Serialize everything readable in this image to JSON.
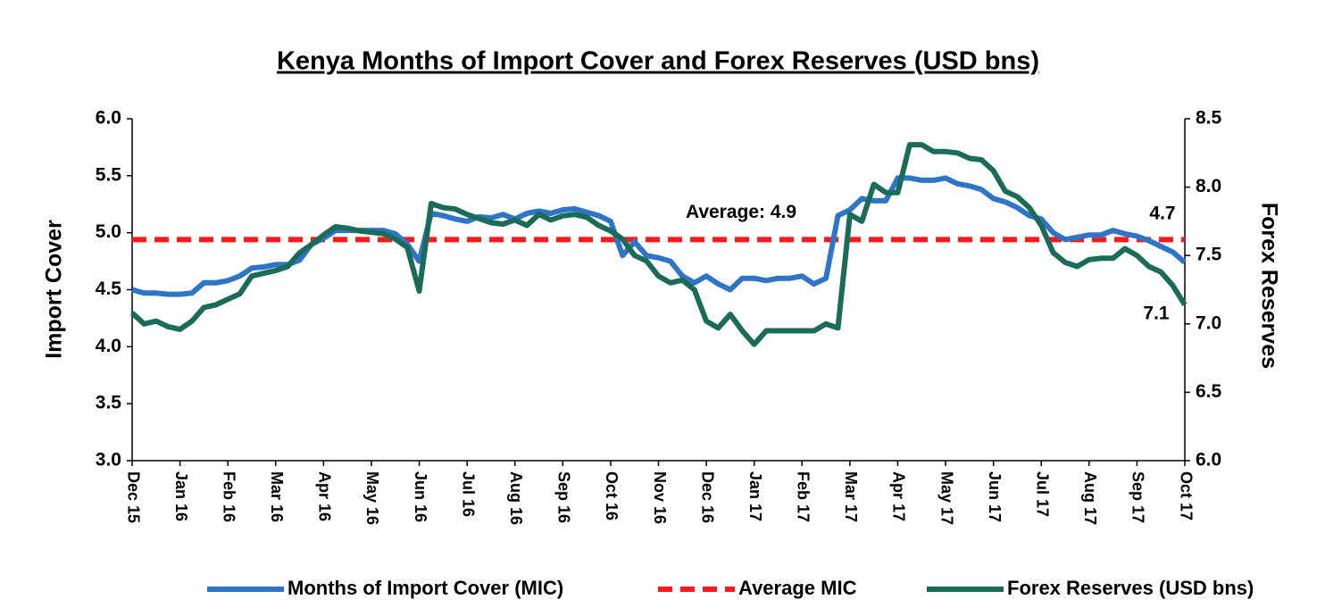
{
  "chart_data": {
    "type": "line",
    "title": "Kenya Months of Import Cover and Forex Reserves (USD bns)",
    "y_label": "Import Cover",
    "y2_label": "Forex Reserves",
    "categories": [
      "Dec 15",
      null,
      null,
      null,
      "Jan 16",
      null,
      null,
      null,
      "Feb 16",
      null,
      null,
      null,
      "Mar 16",
      null,
      null,
      null,
      "Apr 16",
      null,
      null,
      null,
      "May 16",
      null,
      null,
      null,
      "Jun 16",
      null,
      null,
      null,
      "Jul 16",
      null,
      null,
      null,
      "Aug 16",
      null,
      null,
      null,
      "Sep 16",
      null,
      null,
      null,
      "Oct 16",
      null,
      null,
      null,
      "Nov 16",
      null,
      null,
      null,
      "Dec 16",
      null,
      null,
      null,
      "Jan 17",
      null,
      null,
      null,
      "Feb 17",
      null,
      null,
      null,
      "Mar 17",
      null,
      null,
      null,
      "Apr 17",
      null,
      null,
      null,
      "May 17",
      null,
      null,
      null,
      "Jun 17",
      null,
      null,
      null,
      "Jul 17",
      null,
      null,
      null,
      "Aug 17",
      null,
      null,
      null,
      "Sep 17",
      null,
      null,
      null,
      "Oct 17"
    ],
    "series": [
      {
        "name": "Months of Import Cover (MIC)",
        "color": "#2e75c8",
        "axis": "y",
        "values": [
          4.5,
          4.47,
          4.47,
          4.46,
          4.46,
          4.47,
          4.56,
          4.56,
          4.58,
          4.62,
          4.69,
          4.7,
          4.72,
          4.72,
          4.76,
          4.9,
          4.95,
          5.02,
          5.02,
          5.02,
          5.02,
          5.02,
          4.99,
          4.9,
          4.75,
          5.17,
          5.15,
          5.12,
          5.1,
          5.14,
          5.13,
          5.16,
          5.12,
          5.17,
          5.19,
          5.17,
          5.2,
          5.21,
          5.18,
          5.15,
          5.1,
          4.8,
          4.92,
          4.8,
          4.78,
          4.75,
          4.62,
          4.56,
          4.62,
          4.55,
          4.5,
          4.6,
          4.6,
          4.58,
          4.6,
          4.6,
          4.62,
          4.55,
          4.6,
          5.15,
          5.2,
          5.3,
          5.28,
          5.28,
          5.48,
          5.48,
          5.46,
          5.46,
          5.48,
          5.43,
          5.41,
          5.38,
          5.3,
          5.27,
          5.22,
          5.15,
          5.12,
          5.0,
          4.94,
          4.96,
          4.98,
          4.98,
          5.02,
          4.99,
          4.97,
          4.93,
          4.88,
          4.83,
          4.74
        ]
      },
      {
        "name": "Forex Reserves (USD bns)",
        "color": "#1a6b58",
        "axis": "y2",
        "values": [
          7.08,
          7.0,
          7.02,
          6.98,
          6.96,
          7.02,
          7.12,
          7.14,
          7.18,
          7.22,
          7.35,
          7.37,
          7.39,
          7.42,
          7.52,
          7.58,
          7.65,
          7.71,
          7.7,
          7.68,
          7.67,
          7.66,
          7.62,
          7.56,
          7.24,
          7.88,
          7.85,
          7.84,
          7.8,
          7.77,
          7.74,
          7.73,
          7.76,
          7.72,
          7.8,
          7.76,
          7.79,
          7.8,
          7.78,
          7.72,
          7.68,
          7.62,
          7.5,
          7.46,
          7.35,
          7.3,
          7.32,
          7.25,
          7.02,
          6.97,
          7.07,
          6.95,
          6.85,
          6.95,
          6.95,
          6.95,
          6.95,
          6.95,
          7.0,
          6.97,
          7.8,
          7.75,
          8.02,
          7.96,
          7.96,
          8.31,
          8.31,
          8.26,
          8.26,
          8.25,
          8.21,
          8.2,
          8.12,
          7.97,
          7.93,
          7.85,
          7.72,
          7.52,
          7.45,
          7.42,
          7.47,
          7.48,
          7.48,
          7.55,
          7.5,
          7.42,
          7.38,
          7.28,
          7.14
        ]
      }
    ],
    "reference_line": {
      "name": "Average MIC",
      "value": 4.94,
      "label": "Average: 4.9",
      "color": "#ff1a1a"
    },
    "annotations": [
      {
        "text": "4.7"
      },
      {
        "text": "7.1"
      }
    ],
    "ylim": [
      3,
      6
    ],
    "yticks": [
      {
        "value": 3,
        "label": "3.0"
      },
      3.5,
      {
        "value": 4,
        "label": "4.0"
      },
      4.5,
      {
        "value": 5,
        "label": "5.0"
      },
      5.5,
      {
        "value": 6,
        "label": "6.0"
      }
    ],
    "y2lim": [
      6,
      8.5
    ],
    "y2ticks": [
      {
        "value": 6,
        "label": "6.0"
      },
      6.5,
      {
        "value": 7,
        "label": "7.0"
      },
      7.5,
      {
        "value": 8,
        "label": "8.0"
      },
      8.5
    ]
  }
}
